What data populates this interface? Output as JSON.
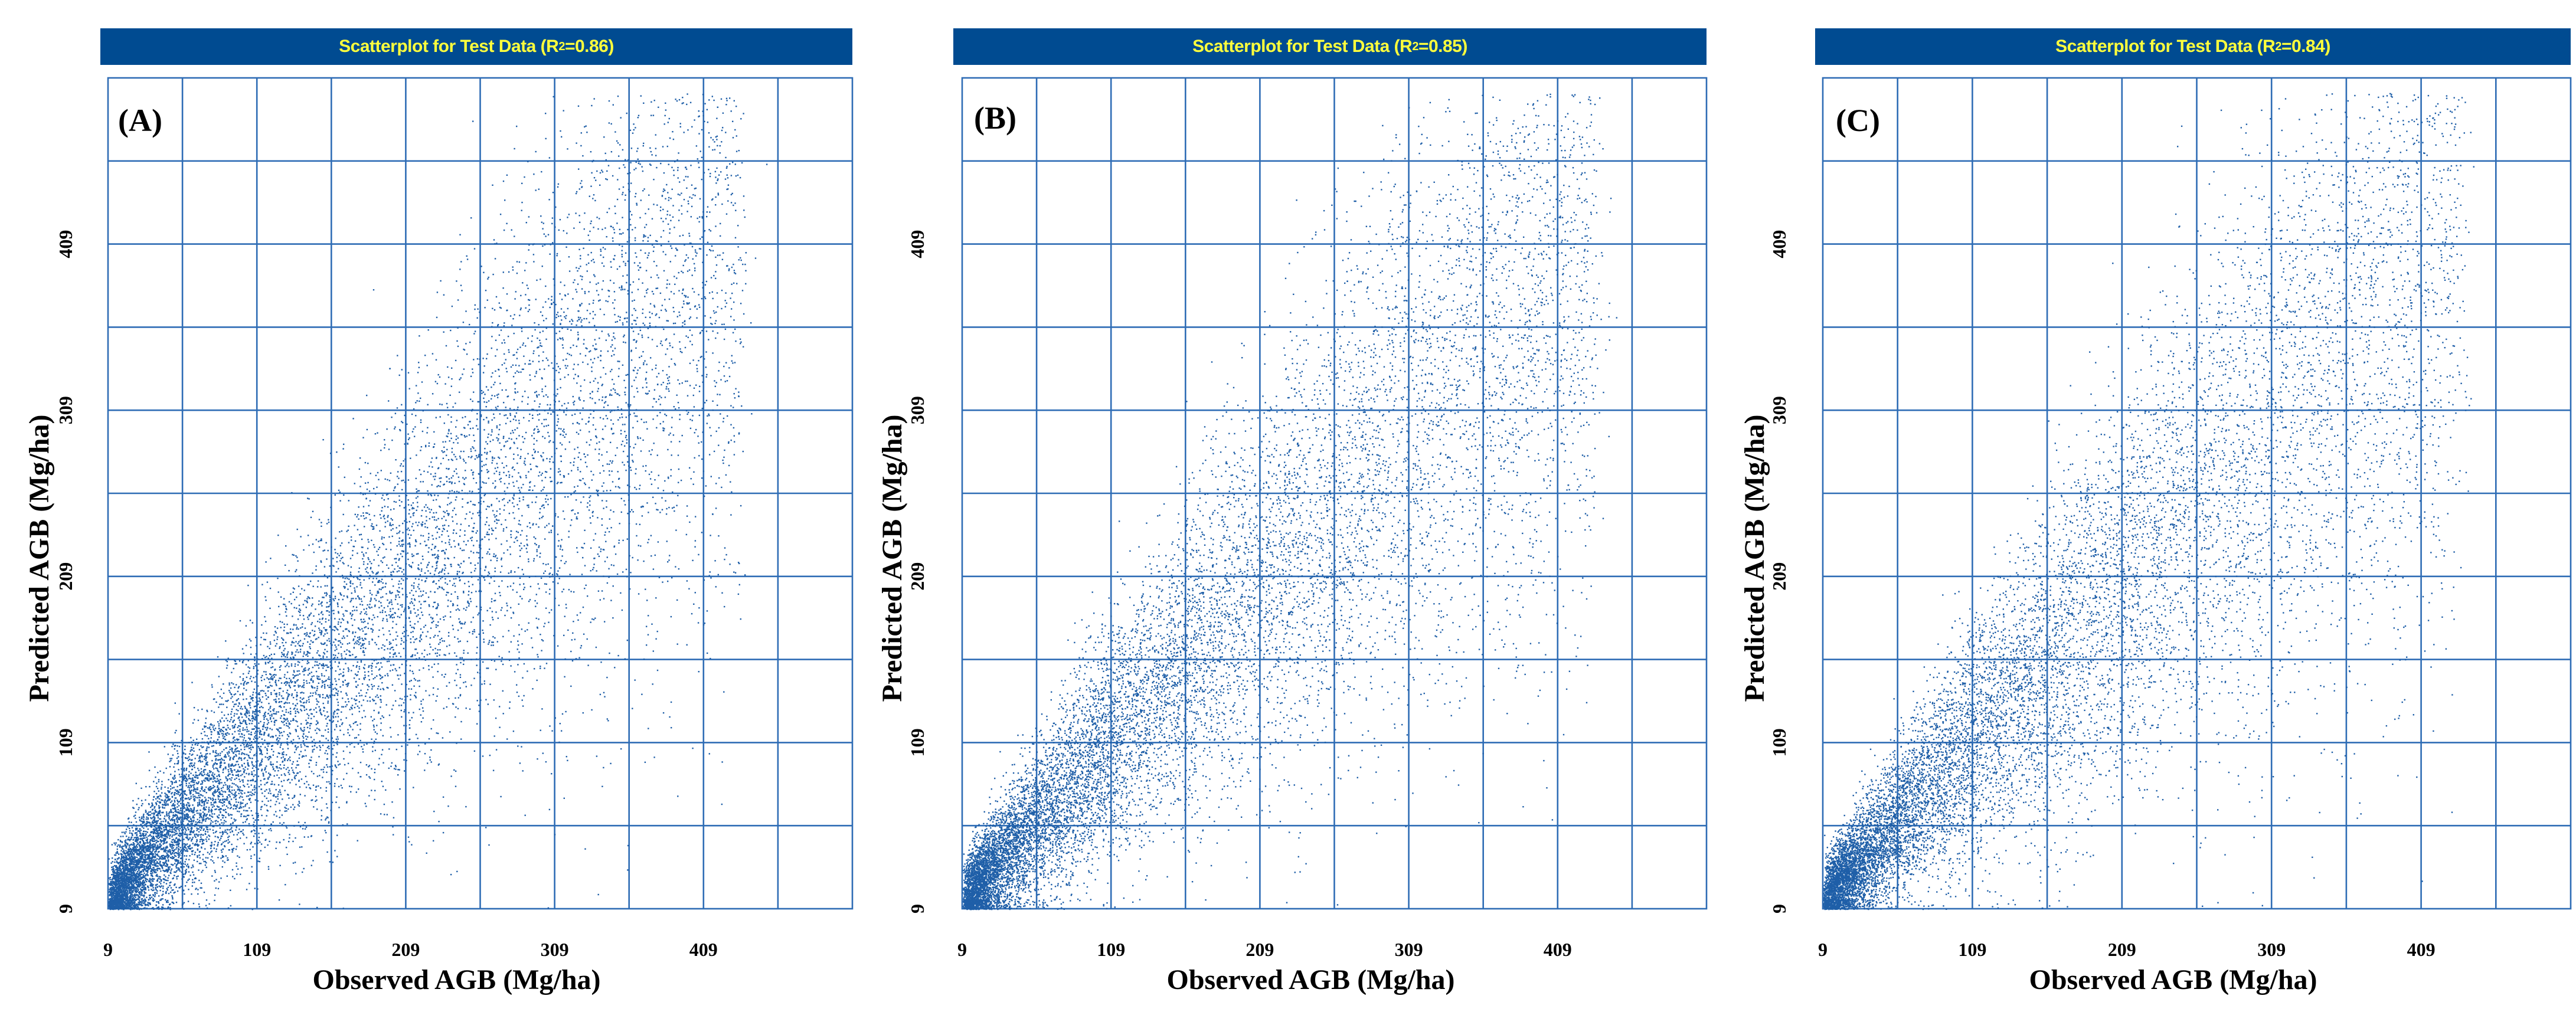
{
  "chart_data": [
    {
      "type": "scatter",
      "panel_label": "(A)",
      "title_prefix": "Scatterplot for Test Data (R",
      "title_suffix": " =0.86)",
      "r2": 0.86,
      "xlabel": "Observed AGB (Mg/ha)",
      "ylabel": "Predicted AGB (Mg/ha)",
      "x_ticks": [
        "9",
        "109",
        "209",
        "309",
        "409"
      ],
      "y_ticks": [
        "9",
        "109",
        "209",
        "309",
        "409"
      ],
      "xlim": [
        9,
        509
      ],
      "ylim": [
        9,
        509
      ],
      "grid": true,
      "n_points": 12000,
      "point_color": "#1f5fa8"
    },
    {
      "type": "scatter",
      "panel_label": "(B)",
      "title_prefix": "Scatterplot for Test Data (R",
      "title_suffix": " =0.85)",
      "r2": 0.85,
      "xlabel": "Observed AGB (Mg/ha)",
      "ylabel": "Predicted AGB (Mg/ha)",
      "x_ticks": [
        "9",
        "109",
        "209",
        "309",
        "409"
      ],
      "y_ticks": [
        "9",
        "109",
        "209",
        "309",
        "409"
      ],
      "xlim": [
        9,
        509
      ],
      "ylim": [
        9,
        509
      ],
      "grid": true,
      "n_points": 12000,
      "point_color": "#1f5fa8"
    },
    {
      "type": "scatter",
      "panel_label": "(C)",
      "title_prefix": "Scatterplot for Test Data (R",
      "title_suffix": " =0.84)",
      "r2": 0.84,
      "xlabel": "Observed AGB (Mg/ha)",
      "ylabel": "Predicted AGB (Mg/ha)",
      "x_ticks": [
        "9",
        "109",
        "209",
        "309",
        "409"
      ],
      "y_ticks": [
        "9",
        "109",
        "209",
        "309",
        "409"
      ],
      "xlim": [
        9,
        509
      ],
      "ylim": [
        9,
        509
      ],
      "grid": true,
      "n_points": 12000,
      "point_color": "#1f5fa8"
    }
  ],
  "title_sup": "2"
}
